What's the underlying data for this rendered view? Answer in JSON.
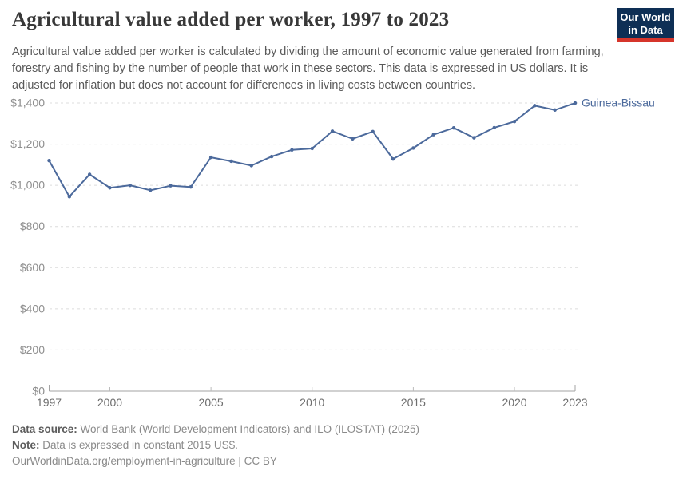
{
  "header": {
    "title": "Agricultural value added per worker, 1997 to 2023",
    "subtitle": "Agricultural value added per worker is calculated by dividing the amount of economic value generated from farming, forestry and fishing by the number of people that work in these sectors. This data is expressed in US dollars. It is adjusted for inflation but does not account for differences in living costs between countries."
  },
  "logo": {
    "line1": "Our World",
    "line2": "in Data",
    "bg_color": "#0e2f55",
    "stripe_color": "#d6352b"
  },
  "chart_data": {
    "type": "line",
    "title": "Agricultural value added per worker, 1997 to 2023",
    "xlabel": "",
    "ylabel": "",
    "xlim": [
      1997,
      2023
    ],
    "ylim": [
      0,
      1400
    ],
    "grid": true,
    "legend_position": "end-of-line-label",
    "x_ticks": [
      1997,
      2000,
      2005,
      2010,
      2015,
      2020,
      2023
    ],
    "y_ticks": [
      {
        "value": 0,
        "label": "$0"
      },
      {
        "value": 200,
        "label": "$200"
      },
      {
        "value": 400,
        "label": "$400"
      },
      {
        "value": 600,
        "label": "$600"
      },
      {
        "value": 800,
        "label": "$800"
      },
      {
        "value": 1000,
        "label": "$1,000"
      },
      {
        "value": 1200,
        "label": "$1,200"
      },
      {
        "value": 1400,
        "label": "$1,400"
      }
    ],
    "series": [
      {
        "name": "Guinea-Bissau",
        "color": "#4c6a9c",
        "x": [
          1997,
          1998,
          1999,
          2000,
          2001,
          2002,
          2003,
          2004,
          2005,
          2006,
          2007,
          2008,
          2009,
          2010,
          2011,
          2012,
          2013,
          2014,
          2015,
          2016,
          2017,
          2018,
          2019,
          2020,
          2021,
          2022,
          2023
        ],
        "values": [
          1120,
          945,
          1053,
          988,
          1000,
          976,
          998,
          992,
          1136,
          1117,
          1096,
          1140,
          1172,
          1179,
          1263,
          1226,
          1261,
          1128,
          1181,
          1246,
          1279,
          1231,
          1280,
          1310,
          1387,
          1366,
          1400
        ]
      }
    ]
  },
  "footer": {
    "datasource_label": "Data source:",
    "datasource_value": " World Bank (World Development Indicators) and ILO (ILOSTAT) (2025)",
    "note_label": "Note:",
    "note_value": " Data is expressed in constant 2015 US$.",
    "citation": "OurWorldinData.org/employment-in-agriculture | CC BY"
  }
}
